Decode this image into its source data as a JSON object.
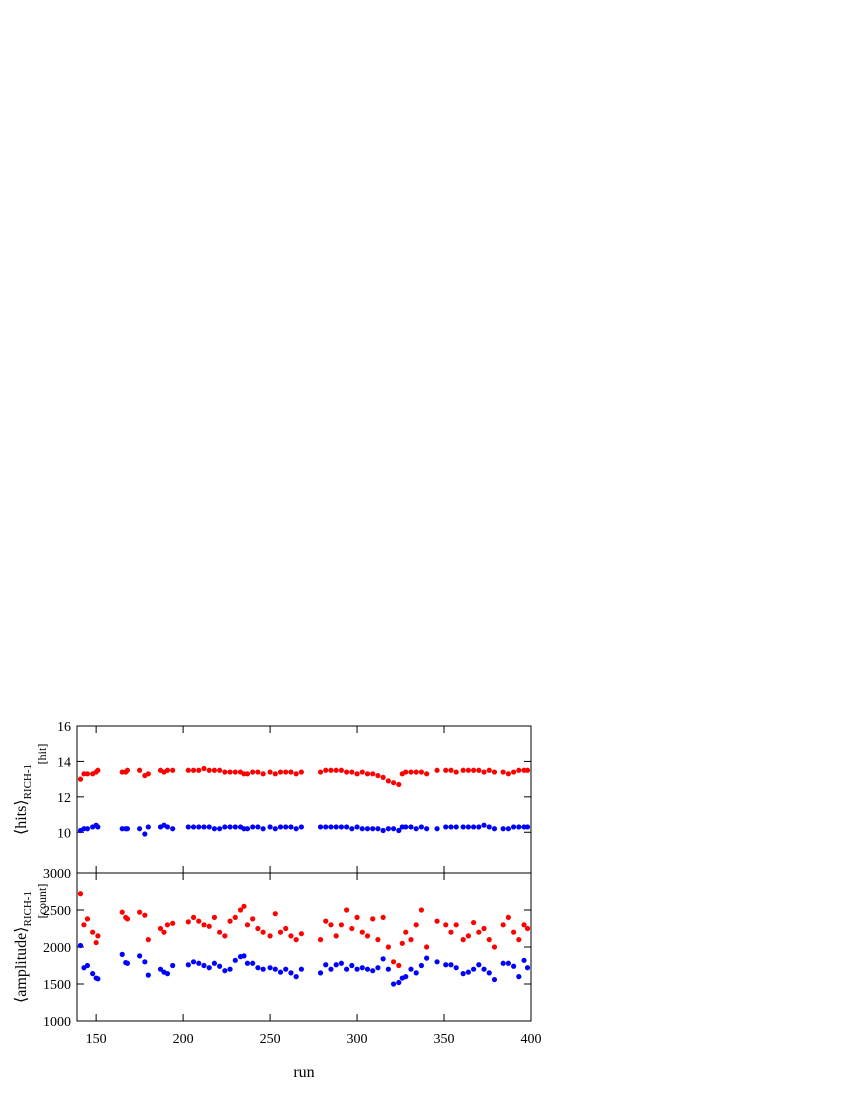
{
  "chart_data": [
    {
      "type": "scatter",
      "ylabel": "⟨hits⟩",
      "ylabel_sub": "RICH-1",
      "yunit": "[hit]",
      "x": [
        141,
        143,
        145,
        148,
        150,
        151,
        165,
        167,
        168,
        175,
        178,
        180,
        187,
        189,
        191,
        194,
        203,
        206,
        209,
        212,
        215,
        218,
        221,
        224,
        227,
        230,
        233,
        235,
        237,
        240,
        243,
        246,
        250,
        253,
        256,
        259,
        262,
        265,
        268,
        279,
        282,
        285,
        288,
        291,
        294,
        297,
        300,
        303,
        306,
        309,
        312,
        315,
        318,
        321,
        324,
        326,
        328,
        331,
        334,
        337,
        340,
        346,
        351,
        354,
        357,
        361,
        364,
        367,
        370,
        373,
        376,
        379,
        384,
        387,
        390,
        393,
        396,
        398
      ],
      "series": [
        {
          "color": "#ff0000",
          "values": [
            13.0,
            13.3,
            13.3,
            13.3,
            13.4,
            13.5,
            13.4,
            13.4,
            13.5,
            13.5,
            13.2,
            13.3,
            13.5,
            13.4,
            13.5,
            13.5,
            13.5,
            13.5,
            13.5,
            13.6,
            13.5,
            13.5,
            13.5,
            13.4,
            13.4,
            13.4,
            13.4,
            13.3,
            13.3,
            13.4,
            13.4,
            13.3,
            13.4,
            13.3,
            13.4,
            13.4,
            13.4,
            13.3,
            13.4,
            13.4,
            13.5,
            13.5,
            13.5,
            13.5,
            13.4,
            13.4,
            13.3,
            13.4,
            13.3,
            13.3,
            13.2,
            13.1,
            12.9,
            12.8,
            12.7,
            13.3,
            13.4,
            13.4,
            13.4,
            13.4,
            13.3,
            13.5,
            13.5,
            13.5,
            13.4,
            13.5,
            13.5,
            13.5,
            13.5,
            13.4,
            13.5,
            13.4,
            13.4,
            13.3,
            13.4,
            13.5,
            13.5,
            13.5
          ]
        },
        {
          "color": "#0000ff",
          "values": [
            10.1,
            10.2,
            10.2,
            10.3,
            10.4,
            10.3,
            10.2,
            10.2,
            10.2,
            10.2,
            9.9,
            10.3,
            10.3,
            10.4,
            10.3,
            10.2,
            10.3,
            10.3,
            10.3,
            10.3,
            10.3,
            10.2,
            10.2,
            10.3,
            10.3,
            10.3,
            10.3,
            10.2,
            10.2,
            10.3,
            10.3,
            10.2,
            10.3,
            10.2,
            10.3,
            10.3,
            10.3,
            10.2,
            10.3,
            10.3,
            10.3,
            10.3,
            10.3,
            10.3,
            10.3,
            10.2,
            10.3,
            10.2,
            10.2,
            10.2,
            10.2,
            10.1,
            10.2,
            10.2,
            10.1,
            10.3,
            10.3,
            10.3,
            10.2,
            10.3,
            10.2,
            10.2,
            10.3,
            10.3,
            10.3,
            10.3,
            10.3,
            10.3,
            10.3,
            10.4,
            10.3,
            10.2,
            10.2,
            10.2,
            10.3,
            10.3,
            10.3,
            10.3
          ]
        }
      ],
      "xlim": [
        139,
        400
      ],
      "xticks": [
        150,
        200,
        250,
        300,
        350,
        400
      ],
      "ylim": [
        7.7,
        16
      ],
      "yticks": [
        10,
        12,
        14,
        16
      ]
    },
    {
      "type": "scatter",
      "xlabel": "run",
      "ylabel": "⟨amplitude⟩",
      "ylabel_sub": "RICH-1",
      "yunit": "[count]",
      "x": [
        141,
        143,
        145,
        148,
        150,
        151,
        165,
        167,
        168,
        175,
        178,
        180,
        187,
        189,
        191,
        194,
        203,
        206,
        209,
        212,
        215,
        218,
        221,
        224,
        227,
        230,
        233,
        235,
        237,
        240,
        243,
        246,
        250,
        253,
        256,
        259,
        262,
        265,
        268,
        279,
        282,
        285,
        288,
        291,
        294,
        297,
        300,
        303,
        306,
        309,
        312,
        315,
        318,
        321,
        324,
        326,
        328,
        331,
        334,
        337,
        340,
        346,
        351,
        354,
        357,
        361,
        364,
        367,
        370,
        373,
        376,
        379,
        384,
        387,
        390,
        393,
        396,
        398
      ],
      "series": [
        {
          "color": "#ff0000",
          "values": [
            2720,
            2300,
            2380,
            2200,
            2060,
            2150,
            2470,
            2400,
            2380,
            2470,
            2430,
            2100,
            2250,
            2200,
            2300,
            2320,
            2340,
            2400,
            2350,
            2300,
            2280,
            2400,
            2200,
            2150,
            2350,
            2400,
            2500,
            2550,
            2300,
            2380,
            2250,
            2200,
            2150,
            2450,
            2200,
            2250,
            2150,
            2100,
            2180,
            2100,
            2350,
            2300,
            2150,
            2300,
            2500,
            2250,
            2400,
            2200,
            2150,
            2380,
            2100,
            2400,
            2000,
            1800,
            1750,
            2050,
            2200,
            2100,
            2300,
            2500,
            2000,
            2350,
            2300,
            2200,
            2300,
            2100,
            2150,
            2330,
            2200,
            2250,
            2100,
            2000,
            2300,
            2400,
            2200,
            2100,
            2300,
            2250
          ]
        },
        {
          "color": "#0000ff",
          "values": [
            2020,
            1720,
            1750,
            1640,
            1580,
            1570,
            1900,
            1790,
            1780,
            1880,
            1800,
            1620,
            1700,
            1660,
            1640,
            1750,
            1760,
            1800,
            1780,
            1750,
            1720,
            1780,
            1740,
            1680,
            1700,
            1820,
            1870,
            1880,
            1780,
            1780,
            1720,
            1700,
            1720,
            1700,
            1660,
            1700,
            1650,
            1600,
            1700,
            1650,
            1760,
            1700,
            1760,
            1780,
            1700,
            1750,
            1700,
            1720,
            1700,
            1680,
            1720,
            1840,
            1700,
            1500,
            1520,
            1580,
            1600,
            1700,
            1650,
            1750,
            1850,
            1800,
            1760,
            1760,
            1720,
            1640,
            1660,
            1700,
            1760,
            1700,
            1650,
            1560,
            1780,
            1780,
            1740,
            1600,
            1820,
            1720
          ]
        }
      ],
      "xlim": [
        139,
        400
      ],
      "xticks": [
        150,
        200,
        250,
        300,
        350,
        400
      ],
      "ylim": [
        1000,
        3000
      ],
      "yticks": [
        1000,
        1500,
        2000,
        2500,
        3000
      ]
    }
  ]
}
